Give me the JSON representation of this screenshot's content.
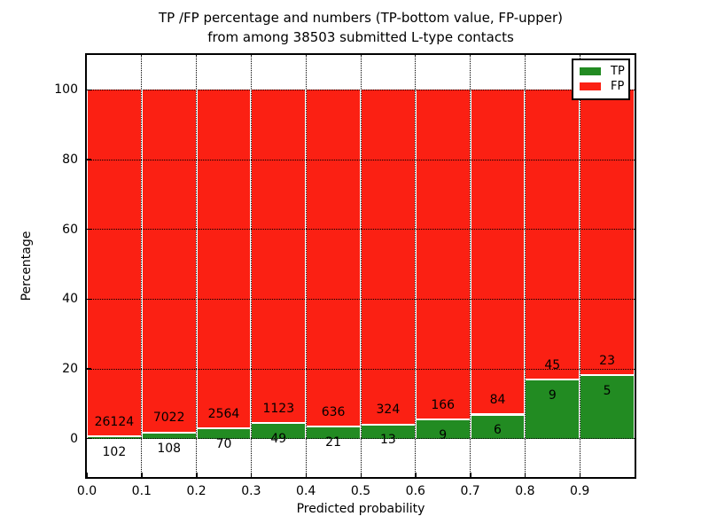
{
  "title": {
    "line1": "TP /FP percentage and numbers (TP-bottom value, FP-upper)",
    "line2": "from among 38503 submitted L-type contacts"
  },
  "axes": {
    "xlabel": "Predicted probability",
    "ylabel": "Percentage",
    "x_tick_labels": [
      "0.0",
      "0.1",
      "0.2",
      "0.3",
      "0.4",
      "0.5",
      "0.6",
      "0.7",
      "0.8",
      "0.9"
    ],
    "y_tick_labels": [
      "0",
      "20",
      "40",
      "60",
      "80",
      "100"
    ]
  },
  "legend": {
    "items": [
      {
        "label": "TP",
        "color": "#228b22"
      },
      {
        "label": "FP",
        "color": "#fb2013"
      }
    ]
  },
  "colors": {
    "tp": "#228b22",
    "fp": "#fb2013",
    "grid": "#000000",
    "frame": "#000000",
    "background": "#ffffff",
    "text": "#000000"
  },
  "chart_data": {
    "type": "bar",
    "stacked": true,
    "percent_normalized": true,
    "title": "TP /FP percentage and numbers (TP-bottom value, FP-upper) from among 38503 submitted L-type contacts",
    "xlabel": "Predicted probability",
    "ylabel": "Percentage",
    "total_contacts": 38503,
    "bin_width": 0.1,
    "bin_starts": [
      0.0,
      0.1,
      0.2,
      0.3,
      0.4,
      0.5,
      0.6,
      0.7,
      0.8,
      0.9
    ],
    "categories": [
      "0.0-0.1",
      "0.1-0.2",
      "0.2-0.3",
      "0.3-0.4",
      "0.4-0.5",
      "0.5-0.6",
      "0.6-0.7",
      "0.7-0.8",
      "0.8-0.9",
      "0.9-1.0"
    ],
    "series": [
      {
        "name": "TP",
        "counts": [
          102,
          108,
          70,
          49,
          21,
          13,
          9,
          6,
          9,
          5
        ]
      },
      {
        "name": "FP",
        "counts": [
          26124,
          7022,
          2564,
          1123,
          636,
          324,
          166,
          84,
          45,
          23
        ]
      }
    ],
    "xlim": [
      0,
      1
    ],
    "ylim": [
      -11,
      110
    ],
    "x_gridlines": [
      0.1,
      0.2,
      0.3,
      0.4,
      0.5,
      0.6,
      0.7,
      0.8,
      0.9
    ],
    "y_gridlines": [
      0,
      20,
      40,
      60,
      80,
      100
    ],
    "grid": true,
    "grid_style": "dotted",
    "legend_position": "upper right",
    "fp_label_offset_pct": 4.4,
    "tp_label_offset_pct": -4.3
  }
}
